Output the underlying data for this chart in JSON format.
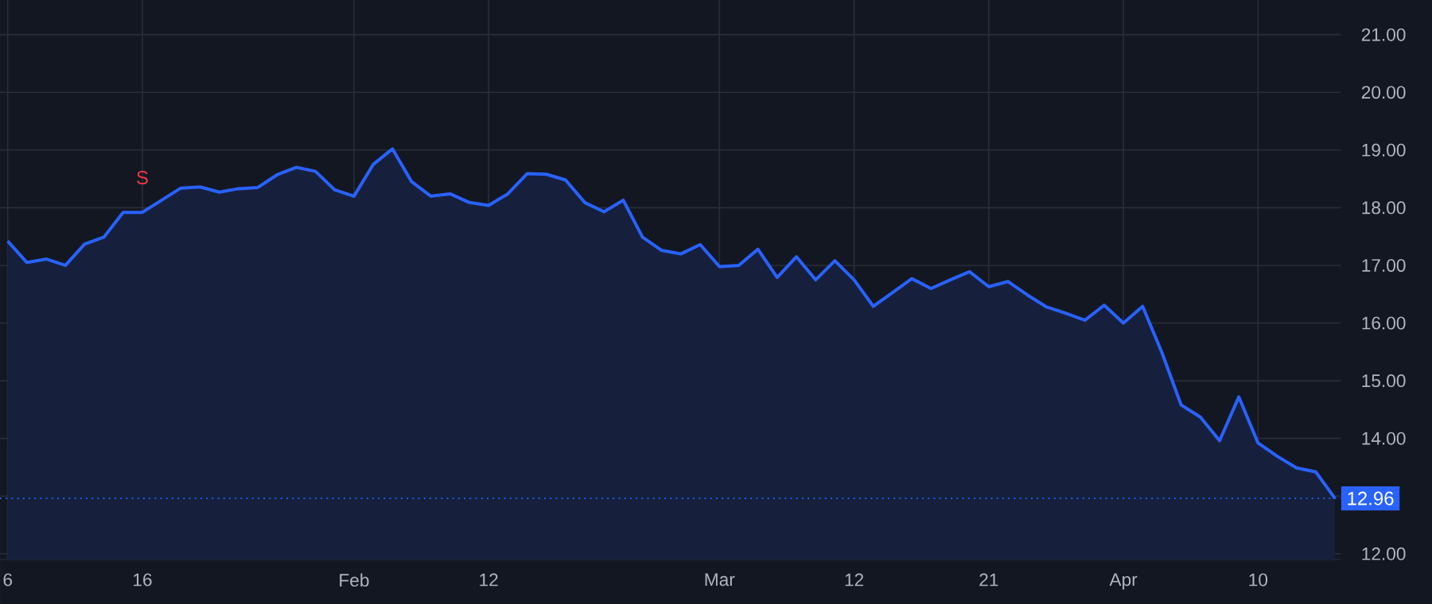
{
  "chart_data": {
    "type": "area",
    "categories": [
      "6",
      null,
      null,
      null,
      null,
      null,
      null,
      "16",
      null,
      null,
      null,
      null,
      null,
      null,
      null,
      null,
      null,
      null,
      "Feb",
      null,
      null,
      null,
      null,
      null,
      null,
      "12",
      null,
      null,
      null,
      null,
      null,
      null,
      null,
      null,
      null,
      null,
      null,
      "Mar",
      null,
      null,
      null,
      null,
      null,
      null,
      "12",
      null,
      null,
      null,
      null,
      null,
      null,
      "21",
      null,
      null,
      null,
      null,
      null,
      null,
      "Apr",
      null,
      null,
      null,
      null,
      null,
      null,
      "10",
      null,
      null,
      null,
      null
    ],
    "series": [
      {
        "color": "#2962ff",
        "values": [
          17.42,
          17.05,
          17.11,
          17.0,
          17.37,
          17.49,
          17.92,
          17.92,
          18.13,
          18.34,
          18.36,
          18.27,
          18.33,
          18.35,
          18.57,
          18.7,
          18.63,
          18.31,
          18.2,
          18.75,
          19.02,
          18.45,
          18.2,
          18.24,
          18.09,
          18.04,
          18.24,
          18.59,
          18.58,
          18.48,
          18.09,
          17.93,
          18.13,
          17.49,
          17.26,
          17.2,
          17.36,
          16.98,
          17.0,
          17.28,
          16.79,
          17.15,
          16.75,
          17.08,
          16.75,
          16.29,
          16.53,
          16.77,
          16.6,
          16.75,
          16.89,
          16.63,
          16.72,
          16.49,
          16.28,
          16.17,
          16.05,
          16.31,
          16.0,
          16.29,
          15.49,
          14.58,
          14.37,
          13.96,
          14.72,
          13.92,
          13.69,
          13.49,
          13.42,
          12.96
        ]
      }
    ],
    "ylim": [
      11.9,
      21.6
    ],
    "yticks": [
      {
        "value": 12,
        "label": "12.00"
      },
      {
        "value": 13,
        "label": null
      },
      {
        "value": 14,
        "label": "14.00"
      },
      {
        "value": 15,
        "label": "15.00"
      },
      {
        "value": 16,
        "label": "16.00"
      },
      {
        "value": 17,
        "label": "17.00"
      },
      {
        "value": 18,
        "label": "18.00"
      },
      {
        "value": 19,
        "label": "19.00"
      },
      {
        "value": 20,
        "label": "20.00"
      },
      {
        "value": 21,
        "label": "21.00"
      }
    ],
    "ref_lines": [
      {
        "axis": "y",
        "value": 12.96,
        "label": "12.96",
        "color": "#2962ff",
        "line_style": "dotted"
      }
    ],
    "annotations": [
      {
        "text": "S",
        "x": "16",
        "y": 17.92
      }
    ],
    "grid": true
  }
}
